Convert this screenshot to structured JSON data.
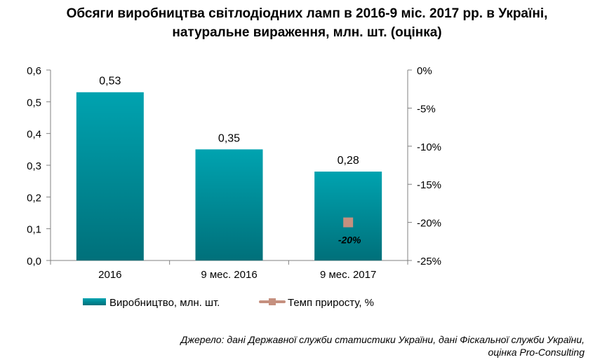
{
  "title_lines": [
    "Обсяги виробництва світлодіодних ламп в 2016-9 міс. 2017 рр. в Україні,",
    "натуральне вираження, млн. шт. (оцінка)"
  ],
  "source_lines": [
    "Джерело: дані Державної служби статистики України, дані Фіскальної служби України,",
    "оцінка Pro-Consulting"
  ],
  "colors": {
    "bar_top": "#00A3B0",
    "bar_bottom": "#00707A",
    "marker": "#C5907F",
    "axis": "#808080"
  },
  "chart_data": {
    "type": "bar",
    "categories": [
      "2016",
      "9 мес. 2016",
      "9 мес. 2017"
    ],
    "series": [
      {
        "name": "Виробництво, млн. шт.",
        "type": "bar",
        "axis": "left",
        "values": [
          0.53,
          0.35,
          0.28
        ],
        "labels": [
          "0,53",
          "0,35",
          "0,28"
        ]
      },
      {
        "name": "Темп приросту, %",
        "type": "line",
        "axis": "right",
        "values": [
          null,
          null,
          -20
        ],
        "labels": [
          "",
          "",
          "-20%"
        ]
      }
    ],
    "y_left": {
      "ylim": [
        0,
        0.6
      ],
      "ticks": [
        0,
        0.1,
        0.2,
        0.3,
        0.4,
        0.5,
        0.6
      ],
      "tick_labels": [
        "0,0",
        "0,1",
        "0,2",
        "0,3",
        "0,4",
        "0,5",
        "0,6"
      ]
    },
    "y_right": {
      "ylim": [
        -25,
        0
      ],
      "ticks": [
        0,
        -5,
        -10,
        -15,
        -20,
        -25
      ],
      "tick_labels": [
        "0%",
        "-5%",
        "-10%",
        "-15%",
        "-20%",
        "-25%"
      ]
    },
    "grid": false,
    "legend_position": "bottom"
  }
}
